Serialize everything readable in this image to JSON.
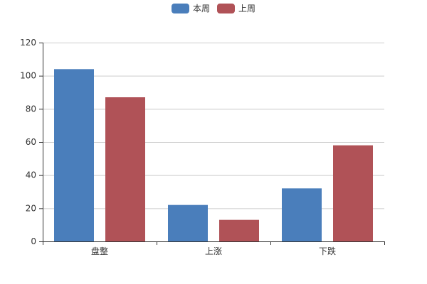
{
  "chart_data": {
    "type": "bar",
    "categories": [
      "盘整",
      "上涨",
      "下跌"
    ],
    "series": [
      {
        "name": "本周",
        "color": "#4a7ebb",
        "values": [
          104,
          22,
          32
        ]
      },
      {
        "name": "上周",
        "color": "#b05257",
        "values": [
          87,
          13,
          58
        ]
      }
    ],
    "title": "",
    "xlabel": "",
    "ylabel": "",
    "ylim": [
      0,
      120
    ],
    "yticks": [
      0,
      20,
      40,
      60,
      80,
      100,
      120
    ],
    "grid": true,
    "legend_position": "top-center"
  },
  "colors": {
    "axis": "#333333",
    "grid": "#cccccc"
  }
}
